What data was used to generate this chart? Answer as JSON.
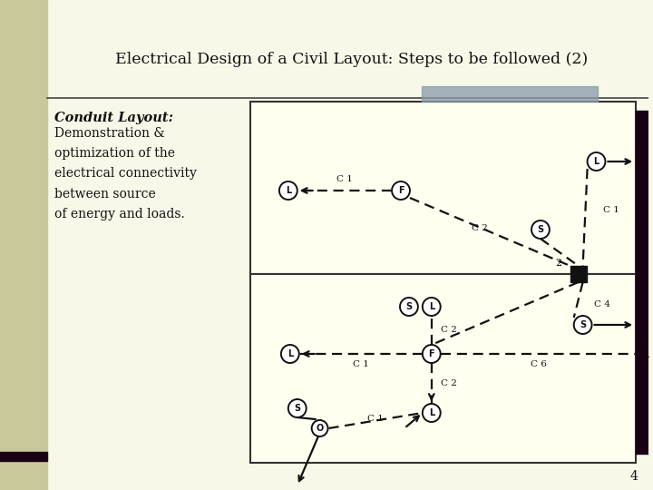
{
  "title": "Electrical Design of a Civil Layout: Steps to be followed (2)",
  "subtitle_bold": "Conduit Layout:",
  "subtitle_text": "Demonstration &\noptimization of the\nelectrical connectivity\nbetween source\nof energy and loads.",
  "bg_color": "#f8f8e8",
  "left_panel_bg": "#c8c89a",
  "diagram_bg": "#fffff0",
  "dark_bar_color": "#1a0015",
  "border_color": "#222222",
  "page_number": "4",
  "title_color": "#111111",
  "accent_bar_color": "#8899aa",
  "line_color": "#111111"
}
